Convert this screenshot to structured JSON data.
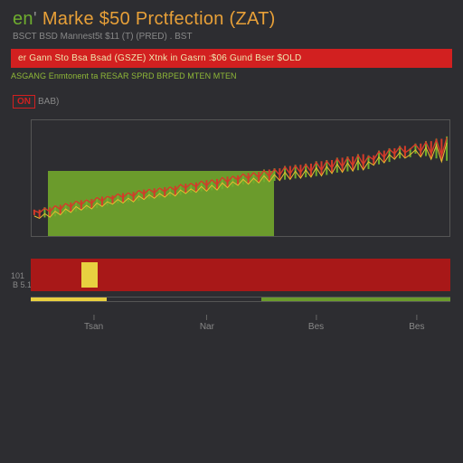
{
  "header": {
    "title_parts": [
      "en",
      "'",
      " Marke $50  Prctfection (ZAT)"
    ],
    "subtitle": "BSCT  BSD  Mannest5t  $11  (T)  (PRED) .  BST"
  },
  "red_banner": "er  Gann  Sto  Bsa  Bsad (GSZE)  Xtnk in Gasrn :$06  Gund  Bser  $OLD",
  "green_strip": "ASGANG Enmtonent ta RESAR  SPRD  BRPED  MTEN  MTEN",
  "side_badge": {
    "boxed": "ON",
    "txt": "BAB)"
  },
  "main_chart": {
    "type": "line-candles",
    "background_color": "#2d2d31",
    "border_color": "#555555",
    "green_block": {
      "left_pct": 4,
      "right_pct": 58,
      "top_pct": 44,
      "bottom_pct": 100,
      "color": "#6b9b2c"
    },
    "y_label_top": "B 5.100",
    "candle_color_up": "#6fae2e",
    "candle_color_down": "#d43a2a",
    "line_color_red": "#d43a2a",
    "line_color_yellow": "#e8bb30",
    "series_baseline": 0.55,
    "series": [
      0.78,
      0.8,
      0.76,
      0.79,
      0.74,
      0.77,
      0.72,
      0.75,
      0.7,
      0.73,
      0.69,
      0.72,
      0.67,
      0.7,
      0.66,
      0.68,
      0.64,
      0.67,
      0.63,
      0.66,
      0.61,
      0.64,
      0.6,
      0.63,
      0.59,
      0.62,
      0.58,
      0.61,
      0.56,
      0.59,
      0.55,
      0.58,
      0.53,
      0.57,
      0.52,
      0.56,
      0.5,
      0.54,
      0.49,
      0.52,
      0.47,
      0.51,
      0.46,
      0.5,
      0.44,
      0.49,
      0.43,
      0.48,
      0.41,
      0.47,
      0.4,
      0.46,
      0.39,
      0.45,
      0.37,
      0.44,
      0.36,
      0.42,
      0.34,
      0.41,
      0.33,
      0.4,
      0.31,
      0.39,
      0.32,
      0.35,
      0.28,
      0.33,
      0.26,
      0.3,
      0.24,
      0.29,
      0.26,
      0.22,
      0.28,
      0.2,
      0.3,
      0.18,
      0.32,
      0.16
    ]
  },
  "lower_strip": {
    "type": "bar",
    "red_color": "#a81818",
    "yellow_color": "#e8d040",
    "yellow_segment": {
      "left_pct": 12,
      "width_pct": 4
    },
    "left_label": "101"
  },
  "thin_indicator": {
    "yellow": {
      "left_pct": 0,
      "width_pct": 18
    },
    "green": {
      "left_pct": 55,
      "width_pct": 45
    }
  },
  "xaxis": {
    "ticks": [
      {
        "pos_pct": 15,
        "label": "Tsan"
      },
      {
        "pos_pct": 42,
        "label": "Nar"
      },
      {
        "pos_pct": 68,
        "label": "Bes"
      },
      {
        "pos_pct": 92,
        "label": "Bes"
      }
    ]
  }
}
